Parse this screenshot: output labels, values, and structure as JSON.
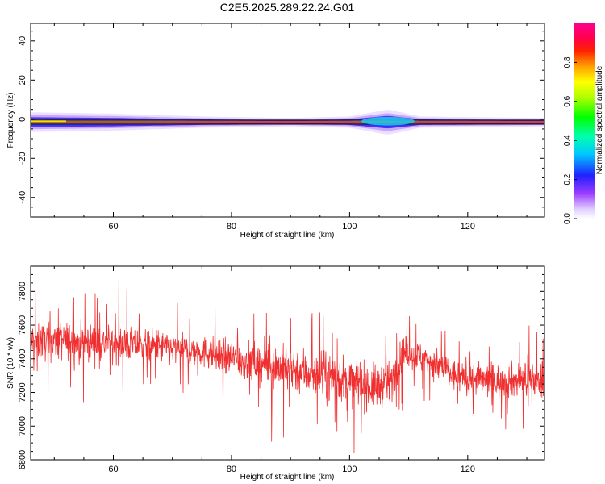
{
  "title": "C2E5.2025.289.22.24.G01",
  "colors": {
    "snr_line": "#f03030",
    "center_band": "#e8333a",
    "axis": "#000000"
  },
  "chart_data": [
    {
      "type": "heatmap",
      "title": "C2E5.2025.289.22.24.G01",
      "xlabel": "Height of straight line (km)",
      "ylabel": "Frequency (Hz)",
      "xlim": [
        46,
        133
      ],
      "ylim": [
        -50,
        49
      ],
      "xticks": [
        60,
        80,
        100,
        120
      ],
      "xtick_labels": [
        "60",
        "80",
        "100",
        "120"
      ],
      "yticks": [
        -40,
        -20,
        0,
        20,
        40
      ],
      "ytick_labels": [
        "-40",
        "-20",
        "0",
        "20",
        "40"
      ],
      "colorbar": {
        "label": "Normalized spectral amplitude",
        "range": [
          0,
          1
        ],
        "ticks": [
          0.0,
          0.2,
          0.4,
          0.6,
          0.8
        ],
        "tick_labels": [
          "0.0",
          "0.2",
          "0.4",
          "0.6",
          "0.8"
        ],
        "colormap": "rainbow (magenta-blue-cyan-green-yellow-orange-red-magenta)"
      },
      "band": {
        "center_frequency_hz": -1.5,
        "width_profile": [
          {
            "x": 46,
            "half_width_hz": 3.5
          },
          {
            "x": 60,
            "half_width_hz": 3.0
          },
          {
            "x": 75,
            "half_width_hz": 2.0
          },
          {
            "x": 90,
            "half_width_hz": 1.5
          },
          {
            "x": 100,
            "half_width_hz": 2.0
          },
          {
            "x": 106.5,
            "half_width_hz": 4.5
          },
          {
            "x": 112,
            "half_width_hz": 2.0
          },
          {
            "x": 133,
            "half_width_hz": 1.5
          }
        ]
      },
      "grid": false
    },
    {
      "type": "line",
      "xlabel": "Height of straight line (km)",
      "ylabel": "SNR (10 * v/v)",
      "xlim": [
        46,
        133
      ],
      "ylim": [
        6800,
        7950
      ],
      "xticks": [
        60,
        80,
        100,
        120
      ],
      "xtick_labels": [
        "60",
        "80",
        "100",
        "120"
      ],
      "yticks": [
        6800,
        7000,
        7200,
        7400,
        7600,
        7800
      ],
      "ytick_labels": [
        "6800",
        "7000",
        "7200",
        "7400",
        "7600",
        "7800"
      ],
      "trend": [
        {
          "x": 46,
          "y": 7510
        },
        {
          "x": 55,
          "y": 7500
        },
        {
          "x": 65,
          "y": 7480
        },
        {
          "x": 75,
          "y": 7440
        },
        {
          "x": 85,
          "y": 7370
        },
        {
          "x": 95,
          "y": 7310
        },
        {
          "x": 100,
          "y": 7270
        },
        {
          "x": 104,
          "y": 7230
        },
        {
          "x": 107,
          "y": 7260
        },
        {
          "x": 109,
          "y": 7440
        },
        {
          "x": 113,
          "y": 7400
        },
        {
          "x": 118,
          "y": 7290
        },
        {
          "x": 125,
          "y": 7270
        },
        {
          "x": 133,
          "y": 7280
        }
      ],
      "noise_amplitude": [
        {
          "x": 46,
          "amp": 150
        },
        {
          "x": 75,
          "amp": 120
        },
        {
          "x": 95,
          "amp": 190
        },
        {
          "x": 105,
          "amp": 170
        },
        {
          "x": 110,
          "amp": 120
        },
        {
          "x": 133,
          "amp": 140
        }
      ],
      "grid": false
    }
  ]
}
